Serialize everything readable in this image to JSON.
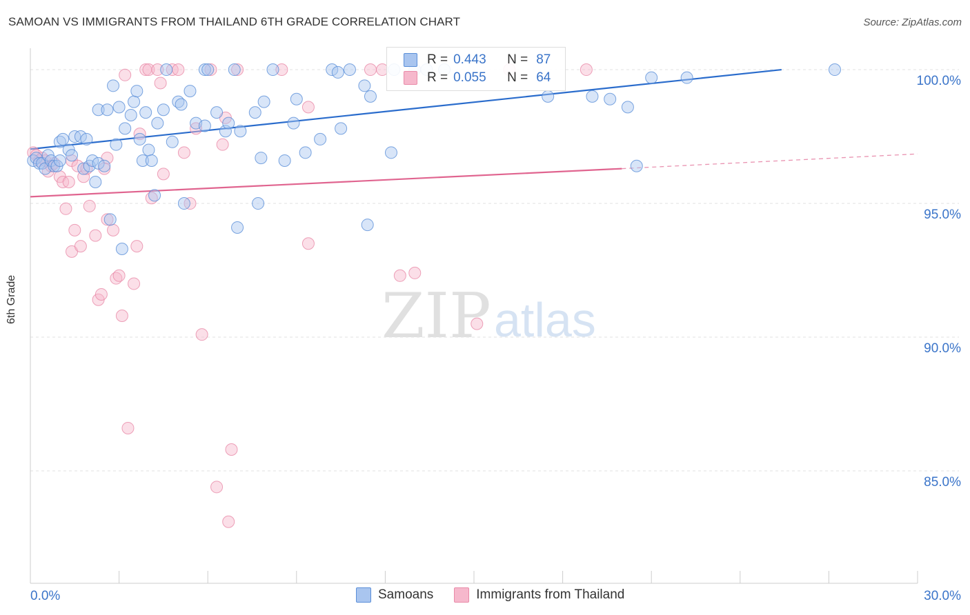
{
  "title": "SAMOAN VS IMMIGRANTS FROM THAILAND 6TH GRADE CORRELATION CHART",
  "source": "Source: ZipAtlas.com",
  "watermark": {
    "zip": "ZIP",
    "atlas": "atlas"
  },
  "legend_top": {
    "rows": [
      {
        "r_label": "R =",
        "r_value": "0.443",
        "n_label": "N =",
        "n_value": "87"
      },
      {
        "r_label": "R =",
        "r_value": "0.055",
        "n_label": "N =",
        "n_value": "64"
      }
    ]
  },
  "colors": {
    "samoans_fill": "#a9c5ef",
    "samoans_stroke": "#5a8ed8",
    "samoans_line": "#2a6ccc",
    "thailand_fill": "#f6b8cc",
    "thailand_stroke": "#e98aa8",
    "thailand_line": "#e0648f",
    "axis_label": "#3a74c9",
    "grid": "#e2e2e2"
  },
  "chart_data": {
    "type": "scatter",
    "title": "SAMOAN VS IMMIGRANTS FROM THAILAND 6TH GRADE CORRELATION CHART",
    "xlabel": "",
    "ylabel": "6th Grade",
    "xlim": [
      0,
      30
    ],
    "ylim": [
      80.8,
      100.8
    ],
    "x_tick_labels": [
      "0.0%",
      "30.0%"
    ],
    "y_ticks": [
      85,
      90,
      95,
      100
    ],
    "y_tick_labels": [
      "85.0%",
      "90.0%",
      "95.0%",
      "100.0%"
    ],
    "grid": true,
    "legend_position": "bottom",
    "series": [
      {
        "name": "Samoans",
        "R": 0.443,
        "N": 87,
        "trend": {
          "x": [
            0,
            25.4
          ],
          "y": [
            97.03,
            100.0
          ],
          "dashed_to_x": null
        },
        "points": [
          [
            0.1,
            96.6
          ],
          [
            0.2,
            96.7
          ],
          [
            0.3,
            96.5
          ],
          [
            0.4,
            96.5
          ],
          [
            0.5,
            96.3
          ],
          [
            0.6,
            96.8
          ],
          [
            0.7,
            96.6
          ],
          [
            0.8,
            96.4
          ],
          [
            0.9,
            96.4
          ],
          [
            1.0,
            96.6
          ],
          [
            1.0,
            97.3
          ],
          [
            1.1,
            97.4
          ],
          [
            1.3,
            97.0
          ],
          [
            1.4,
            96.8
          ],
          [
            1.5,
            97.5
          ],
          [
            1.7,
            97.5
          ],
          [
            1.8,
            96.3
          ],
          [
            1.9,
            97.4
          ],
          [
            2.0,
            96.4
          ],
          [
            2.1,
            96.6
          ],
          [
            2.2,
            95.8
          ],
          [
            2.3,
            96.5
          ],
          [
            2.3,
            98.5
          ],
          [
            2.5,
            96.4
          ],
          [
            2.6,
            98.5
          ],
          [
            2.7,
            94.4
          ],
          [
            2.8,
            99.4
          ],
          [
            2.9,
            97.2
          ],
          [
            3.0,
            98.6
          ],
          [
            3.1,
            93.3
          ],
          [
            3.2,
            97.8
          ],
          [
            3.4,
            98.3
          ],
          [
            3.5,
            98.8
          ],
          [
            3.6,
            99.2
          ],
          [
            3.7,
            97.4
          ],
          [
            3.8,
            96.6
          ],
          [
            3.9,
            98.4
          ],
          [
            4.0,
            97.0
          ],
          [
            4.1,
            96.6
          ],
          [
            4.2,
            95.3
          ],
          [
            4.3,
            98.0
          ],
          [
            4.5,
            98.5
          ],
          [
            4.6,
            100.0
          ],
          [
            4.8,
            97.3
          ],
          [
            5.0,
            98.8
          ],
          [
            5.1,
            98.7
          ],
          [
            5.2,
            95.0
          ],
          [
            5.4,
            99.2
          ],
          [
            5.6,
            98.0
          ],
          [
            5.9,
            97.9
          ],
          [
            5.9,
            100.0
          ],
          [
            6.0,
            100.0
          ],
          [
            6.3,
            98.4
          ],
          [
            6.6,
            97.7
          ],
          [
            6.7,
            98.0
          ],
          [
            6.9,
            100.0
          ],
          [
            7.0,
            94.1
          ],
          [
            7.1,
            97.7
          ],
          [
            7.6,
            98.4
          ],
          [
            7.7,
            95.0
          ],
          [
            7.8,
            96.7
          ],
          [
            7.9,
            98.8
          ],
          [
            8.2,
            100.0
          ],
          [
            8.6,
            96.6
          ],
          [
            8.9,
            98.0
          ],
          [
            9.0,
            98.9
          ],
          [
            9.3,
            96.9
          ],
          [
            9.8,
            97.4
          ],
          [
            10.2,
            100.0
          ],
          [
            10.4,
            99.9
          ],
          [
            10.5,
            97.8
          ],
          [
            10.8,
            100.0
          ],
          [
            11.3,
            99.4
          ],
          [
            11.4,
            94.2
          ],
          [
            11.5,
            99.0
          ],
          [
            12.2,
            96.9
          ],
          [
            12.3,
            100.0
          ],
          [
            13.0,
            100.0
          ],
          [
            13.4,
            100.0
          ],
          [
            14.0,
            100.0
          ],
          [
            17.5,
            99.0
          ],
          [
            19.0,
            99.0
          ],
          [
            19.6,
            98.9
          ],
          [
            20.2,
            98.6
          ],
          [
            20.5,
            96.4
          ],
          [
            21.0,
            99.7
          ],
          [
            22.2,
            99.7
          ],
          [
            27.2,
            100.0
          ]
        ]
      },
      {
        "name": "Immigrants from Thailand",
        "R": 0.055,
        "N": 64,
        "trend": {
          "x": [
            0,
            20.0
          ],
          "y": [
            95.25,
            96.3
          ],
          "dashed_to_x": 30.0,
          "dashed_to_y": 96.85
        },
        "points": [
          [
            0.1,
            96.9
          ],
          [
            0.2,
            96.8
          ],
          [
            0.3,
            96.6
          ],
          [
            0.4,
            96.7
          ],
          [
            0.5,
            96.6
          ],
          [
            0.6,
            96.2
          ],
          [
            0.7,
            96.4
          ],
          [
            0.8,
            96.5
          ],
          [
            1.0,
            96.0
          ],
          [
            1.1,
            95.8
          ],
          [
            1.2,
            94.8
          ],
          [
            1.3,
            95.8
          ],
          [
            1.4,
            96.6
          ],
          [
            1.4,
            93.2
          ],
          [
            1.5,
            94.0
          ],
          [
            1.6,
            96.4
          ],
          [
            1.7,
            93.4
          ],
          [
            1.8,
            96.0
          ],
          [
            1.9,
            96.3
          ],
          [
            2.0,
            94.9
          ],
          [
            2.2,
            93.8
          ],
          [
            2.3,
            91.4
          ],
          [
            2.4,
            91.6
          ],
          [
            2.5,
            96.3
          ],
          [
            2.6,
            96.7
          ],
          [
            2.6,
            94.4
          ],
          [
            2.8,
            94.0
          ],
          [
            2.9,
            92.2
          ],
          [
            3.0,
            92.3
          ],
          [
            3.1,
            90.8
          ],
          [
            3.2,
            99.8
          ],
          [
            3.3,
            86.6
          ],
          [
            3.5,
            92.0
          ],
          [
            3.6,
            93.4
          ],
          [
            3.7,
            97.6
          ],
          [
            3.9,
            100.0
          ],
          [
            4.0,
            100.0
          ],
          [
            4.1,
            95.2
          ],
          [
            4.3,
            100.0
          ],
          [
            4.4,
            99.5
          ],
          [
            4.5,
            96.1
          ],
          [
            4.8,
            100.0
          ],
          [
            5.0,
            100.0
          ],
          [
            5.2,
            96.9
          ],
          [
            5.4,
            95.0
          ],
          [
            5.6,
            97.8
          ],
          [
            5.8,
            90.1
          ],
          [
            6.1,
            100.0
          ],
          [
            6.3,
            84.4
          ],
          [
            6.5,
            97.2
          ],
          [
            6.6,
            98.2
          ],
          [
            6.7,
            83.1
          ],
          [
            6.8,
            85.8
          ],
          [
            7.0,
            100.0
          ],
          [
            8.5,
            100.0
          ],
          [
            9.4,
            98.6
          ],
          [
            9.4,
            93.5
          ],
          [
            11.5,
            100.0
          ],
          [
            11.9,
            100.0
          ],
          [
            12.5,
            92.3
          ],
          [
            13.0,
            92.4
          ],
          [
            15.1,
            90.5
          ],
          [
            16.2,
            100.0
          ],
          [
            18.8,
            100.0
          ]
        ]
      }
    ]
  },
  "legend_bottom": {
    "items": [
      {
        "label": "Samoans"
      },
      {
        "label": "Immigrants from Thailand"
      }
    ]
  }
}
